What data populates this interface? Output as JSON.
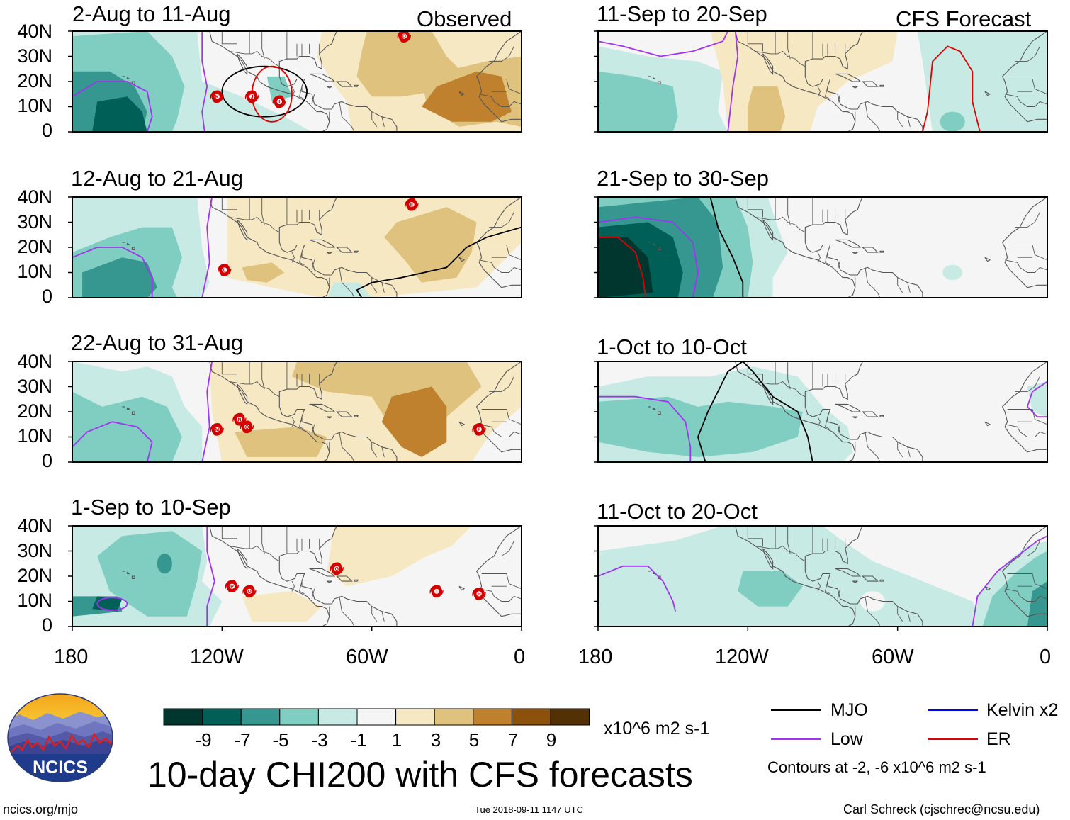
{
  "colors": {
    "dg1": "#01362f",
    "dg2": "#005f56",
    "dg3": "#35978f",
    "dg4": "#80cdc1",
    "dg5": "#c7eae5",
    "neutral": "#f5f5f5",
    "br1": "#f6e8c3",
    "br2": "#dfc27d",
    "br3": "#bf812d",
    "br4": "#8c510a",
    "br5": "#543005",
    "mjo": "#000000",
    "low": "#a034f0",
    "kelvin": "#0000ff",
    "er": "#e00000",
    "storm": "#d40000",
    "land": "#555555"
  },
  "header": {
    "observed_label": "Observed",
    "forecast_label": "CFS Forecast"
  },
  "axes": {
    "lat_labels": [
      "40N",
      "30N",
      "20N",
      "10N",
      "0"
    ],
    "lon_labels": [
      "180",
      "120W",
      "60W",
      "0"
    ]
  },
  "panels": [
    {
      "id": "p1",
      "column": "observed",
      "title": "2-Aug to 11-Aug"
    },
    {
      "id": "p2",
      "column": "observed",
      "title": "12-Aug to 21-Aug"
    },
    {
      "id": "p3",
      "column": "observed",
      "title": "22-Aug to 31-Aug"
    },
    {
      "id": "p4",
      "column": "observed",
      "title": "1-Sep to 10-Sep"
    },
    {
      "id": "p5",
      "column": "forecast",
      "title": "11-Sep to 20-Sep"
    },
    {
      "id": "p6",
      "column": "forecast",
      "title": "21-Sep to 30-Sep"
    },
    {
      "id": "p7",
      "column": "forecast",
      "title": "1-Oct to 10-Oct"
    },
    {
      "id": "p8",
      "column": "forecast",
      "title": "11-Oct to 20-Oct"
    }
  ],
  "storms": [
    {
      "panel": 0,
      "letter": "K",
      "lon": -122,
      "lat": 14
    },
    {
      "panel": 0,
      "letter": "J",
      "lon": -108,
      "lat": 14
    },
    {
      "panel": 0,
      "letter": "I",
      "lon": -97,
      "lat": 12
    },
    {
      "panel": 0,
      "letter": "D",
      "lon": -47,
      "lat": 38
    },
    {
      "panel": 1,
      "letter": "L",
      "lon": -119,
      "lat": 11
    },
    {
      "panel": 1,
      "letter": "E",
      "lon": -44,
      "lat": 37
    },
    {
      "panel": 2,
      "letter": "M",
      "lon": -122,
      "lat": 13
    },
    {
      "panel": 2,
      "letter": "N",
      "lon": -113,
      "lat": 17
    },
    {
      "panel": 2,
      "letter": "O",
      "lon": -110,
      "lat": 14
    },
    {
      "panel": 2,
      "letter": "F",
      "lon": -17,
      "lat": 13
    },
    {
      "panel": 3,
      "letter": "P",
      "lon": -116,
      "lat": 16
    },
    {
      "panel": 3,
      "letter": "O",
      "lon": -109,
      "lat": 14
    },
    {
      "panel": 3,
      "letter": "G",
      "lon": -74,
      "lat": 23
    },
    {
      "panel": 3,
      "letter": "I",
      "lon": -34,
      "lat": 14
    },
    {
      "panel": 3,
      "letter": "H",
      "lon": -17,
      "lat": 13
    }
  ],
  "colorbar": {
    "ticks": [
      "-9",
      "-7",
      "-5",
      "-3",
      "-1",
      "1",
      "3",
      "5",
      "7",
      "9"
    ],
    "units": "x10^6 m2 s-1"
  },
  "legend": {
    "mjo": "MJO",
    "kelvin": "Kelvin x2",
    "low": "Low",
    "er": "ER",
    "contour_note": "Contours at -2, -6 x10^6 m2 s-1"
  },
  "footer": {
    "logo_text": "NCICS",
    "main_title": "10-day CHI200 with CFS forecasts",
    "url": "ncics.org/mjo",
    "timestamp": "Tue 2018-09-11 1147 UTC",
    "author": "Carl Schreck (cjschrec@ncsu.edu)"
  }
}
